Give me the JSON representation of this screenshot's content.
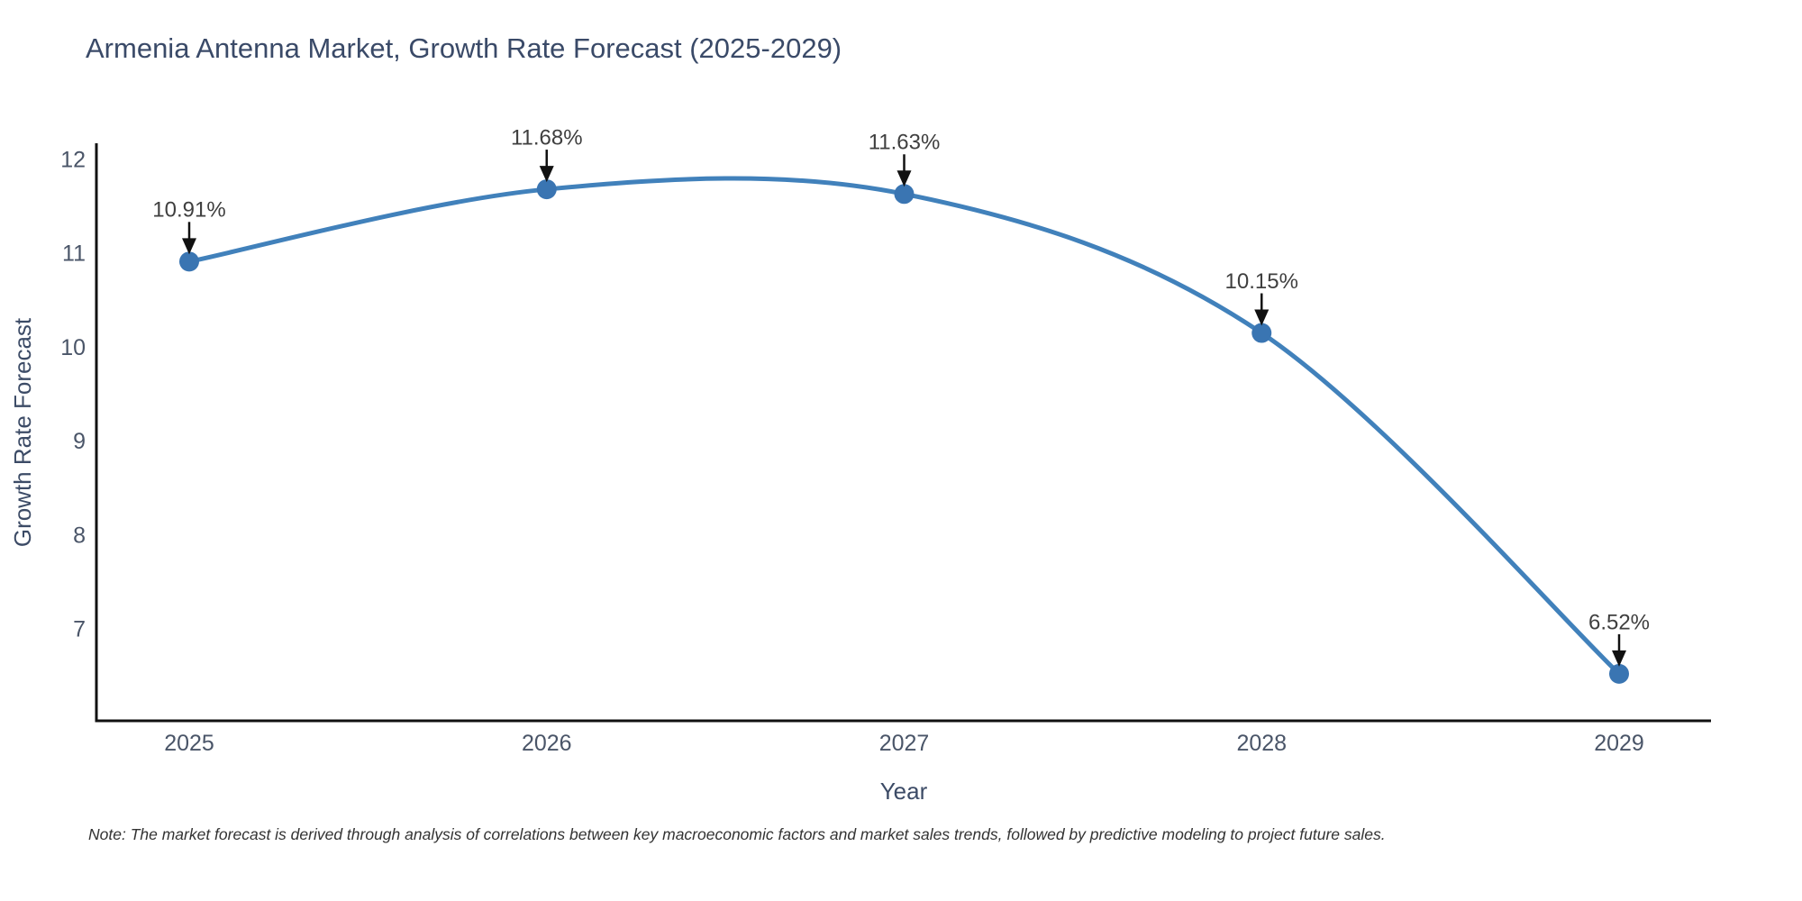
{
  "title": "Armenia Antenna Market, Growth Rate Forecast (2025-2029)",
  "note": "Note: The market forecast is derived through analysis of correlations between key macroeconomic factors and market sales trends, followed by predictive modeling to project future sales.",
  "chart_data": {
    "type": "line",
    "title": "Armenia Antenna Market, Growth Rate Forecast (2025-2029)",
    "x": [
      2025,
      2026,
      2027,
      2028,
      2029
    ],
    "values": [
      10.91,
      11.68,
      11.63,
      10.15,
      6.52
    ],
    "point_labels": [
      "10.91%",
      "11.68%",
      "11.63%",
      "10.15%",
      "6.52%"
    ],
    "xlabel": "Year",
    "ylabel": "Growth Rate Forecast",
    "yticks": [
      7,
      8,
      9,
      10,
      11,
      12
    ],
    "ylim": [
      6.02,
      12.17
    ],
    "line_shape": "spline",
    "grid": false,
    "legend": false,
    "colors": {
      "line": "#4181bb",
      "marker": "#3a75b2",
      "axis": "#111111",
      "tick_label": "#4a5568",
      "axis_title": "#3c4b66",
      "annotation_text": "#3f3f3f",
      "annotation_arrow": "#111111"
    }
  }
}
